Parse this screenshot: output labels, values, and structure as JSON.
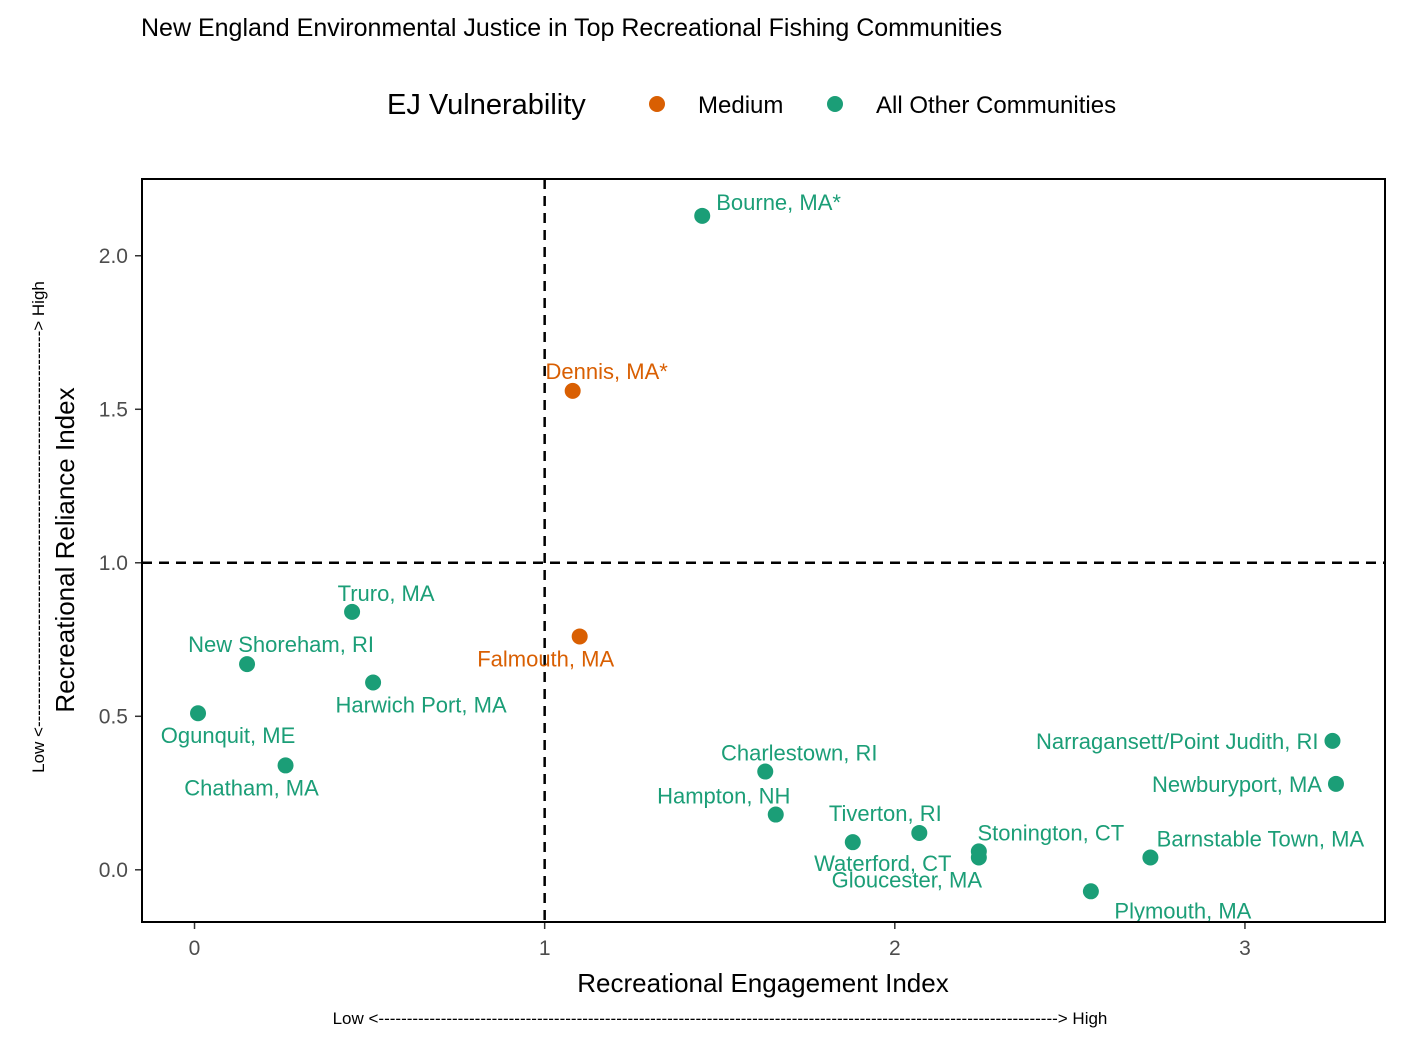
{
  "chart_data": {
    "type": "scatter",
    "title": "New England Environmental Justice in Top Recreational Fishing Communities",
    "xlabel": "Recreational Engagement Index",
    "ylabel": "Recreational Reliance Index",
    "x_direction_note": "Low <------------------------------------------------------------------------------------------------------------------------> High",
    "y_direction_note": "Low <----------------------------------------------------------------------> High",
    "xlim": [
      -0.15,
      3.4
    ],
    "ylim": [
      -0.17,
      2.25
    ],
    "x_ticks": [
      {
        "value": 0,
        "label": "0"
      },
      {
        "value": 1,
        "label": "1"
      },
      {
        "value": 2,
        "label": "2"
      },
      {
        "value": 3,
        "label": "3"
      }
    ],
    "y_ticks": [
      {
        "value": 0,
        "label": "0.0"
      },
      {
        "value": 0.5,
        "label": "0.5"
      },
      {
        "value": 1,
        "label": "1.0"
      },
      {
        "value": 1.5,
        "label": "1.5"
      },
      {
        "value": 2,
        "label": "2.0"
      }
    ],
    "reference_lines": {
      "x": 1,
      "y": 1,
      "style": "dashed"
    },
    "grid": false,
    "legend": {
      "title": "EJ Vulnerability",
      "position": "top",
      "entries": [
        {
          "label": "Medium",
          "color": "#D95F02"
        },
        {
          "label": "All Other Communities",
          "color": "#1B9E77"
        }
      ]
    },
    "points": [
      {
        "label": "Bourne, MA*",
        "x": 1.45,
        "y": 2.13,
        "group": "All Other Communities"
      },
      {
        "label": "Dennis, MA*",
        "x": 1.08,
        "y": 1.56,
        "group": "Medium"
      },
      {
        "label": "Truro, MA",
        "x": 0.45,
        "y": 0.84,
        "group": "All Other Communities"
      },
      {
        "label": "Falmouth, MA",
        "x": 1.1,
        "y": 0.76,
        "group": "Medium"
      },
      {
        "label": "New Shoreham, RI",
        "x": 0.15,
        "y": 0.67,
        "group": "All Other Communities"
      },
      {
        "label": "Harwich Port, MA",
        "x": 0.51,
        "y": 0.61,
        "group": "All Other Communities"
      },
      {
        "label": "Ogunquit, ME",
        "x": 0.01,
        "y": 0.51,
        "group": "All Other Communities"
      },
      {
        "label": "Chatham, MA",
        "x": 0.26,
        "y": 0.34,
        "group": "All Other Communities"
      },
      {
        "label": "Charlestown, RI",
        "x": 1.63,
        "y": 0.32,
        "group": "All Other Communities"
      },
      {
        "label": "Hampton, NH",
        "x": 1.66,
        "y": 0.18,
        "group": "All Other Communities"
      },
      {
        "label": "Tiverton, RI",
        "x": 2.07,
        "y": 0.12,
        "group": "All Other Communities"
      },
      {
        "label": "Waterford, CT",
        "x": 1.88,
        "y": 0.09,
        "group": "All Other Communities"
      },
      {
        "label": "Stonington, CT",
        "x": 2.24,
        "y": 0.06,
        "group": "All Other Communities"
      },
      {
        "label": "Gloucester, MA",
        "x": 2.24,
        "y": 0.04,
        "group": "All Other Communities"
      },
      {
        "label": "Barnstable Town, MA",
        "x": 2.73,
        "y": 0.04,
        "group": "All Other Communities"
      },
      {
        "label": "Plymouth, MA",
        "x": 2.56,
        "y": -0.07,
        "group": "All Other Communities"
      },
      {
        "label": "Narragansett/Point Judith, RI",
        "x": 3.25,
        "y": 0.42,
        "group": "All Other Communities"
      },
      {
        "label": "Newburyport, MA",
        "x": 3.26,
        "y": 0.28,
        "group": "All Other Communities"
      }
    ]
  }
}
